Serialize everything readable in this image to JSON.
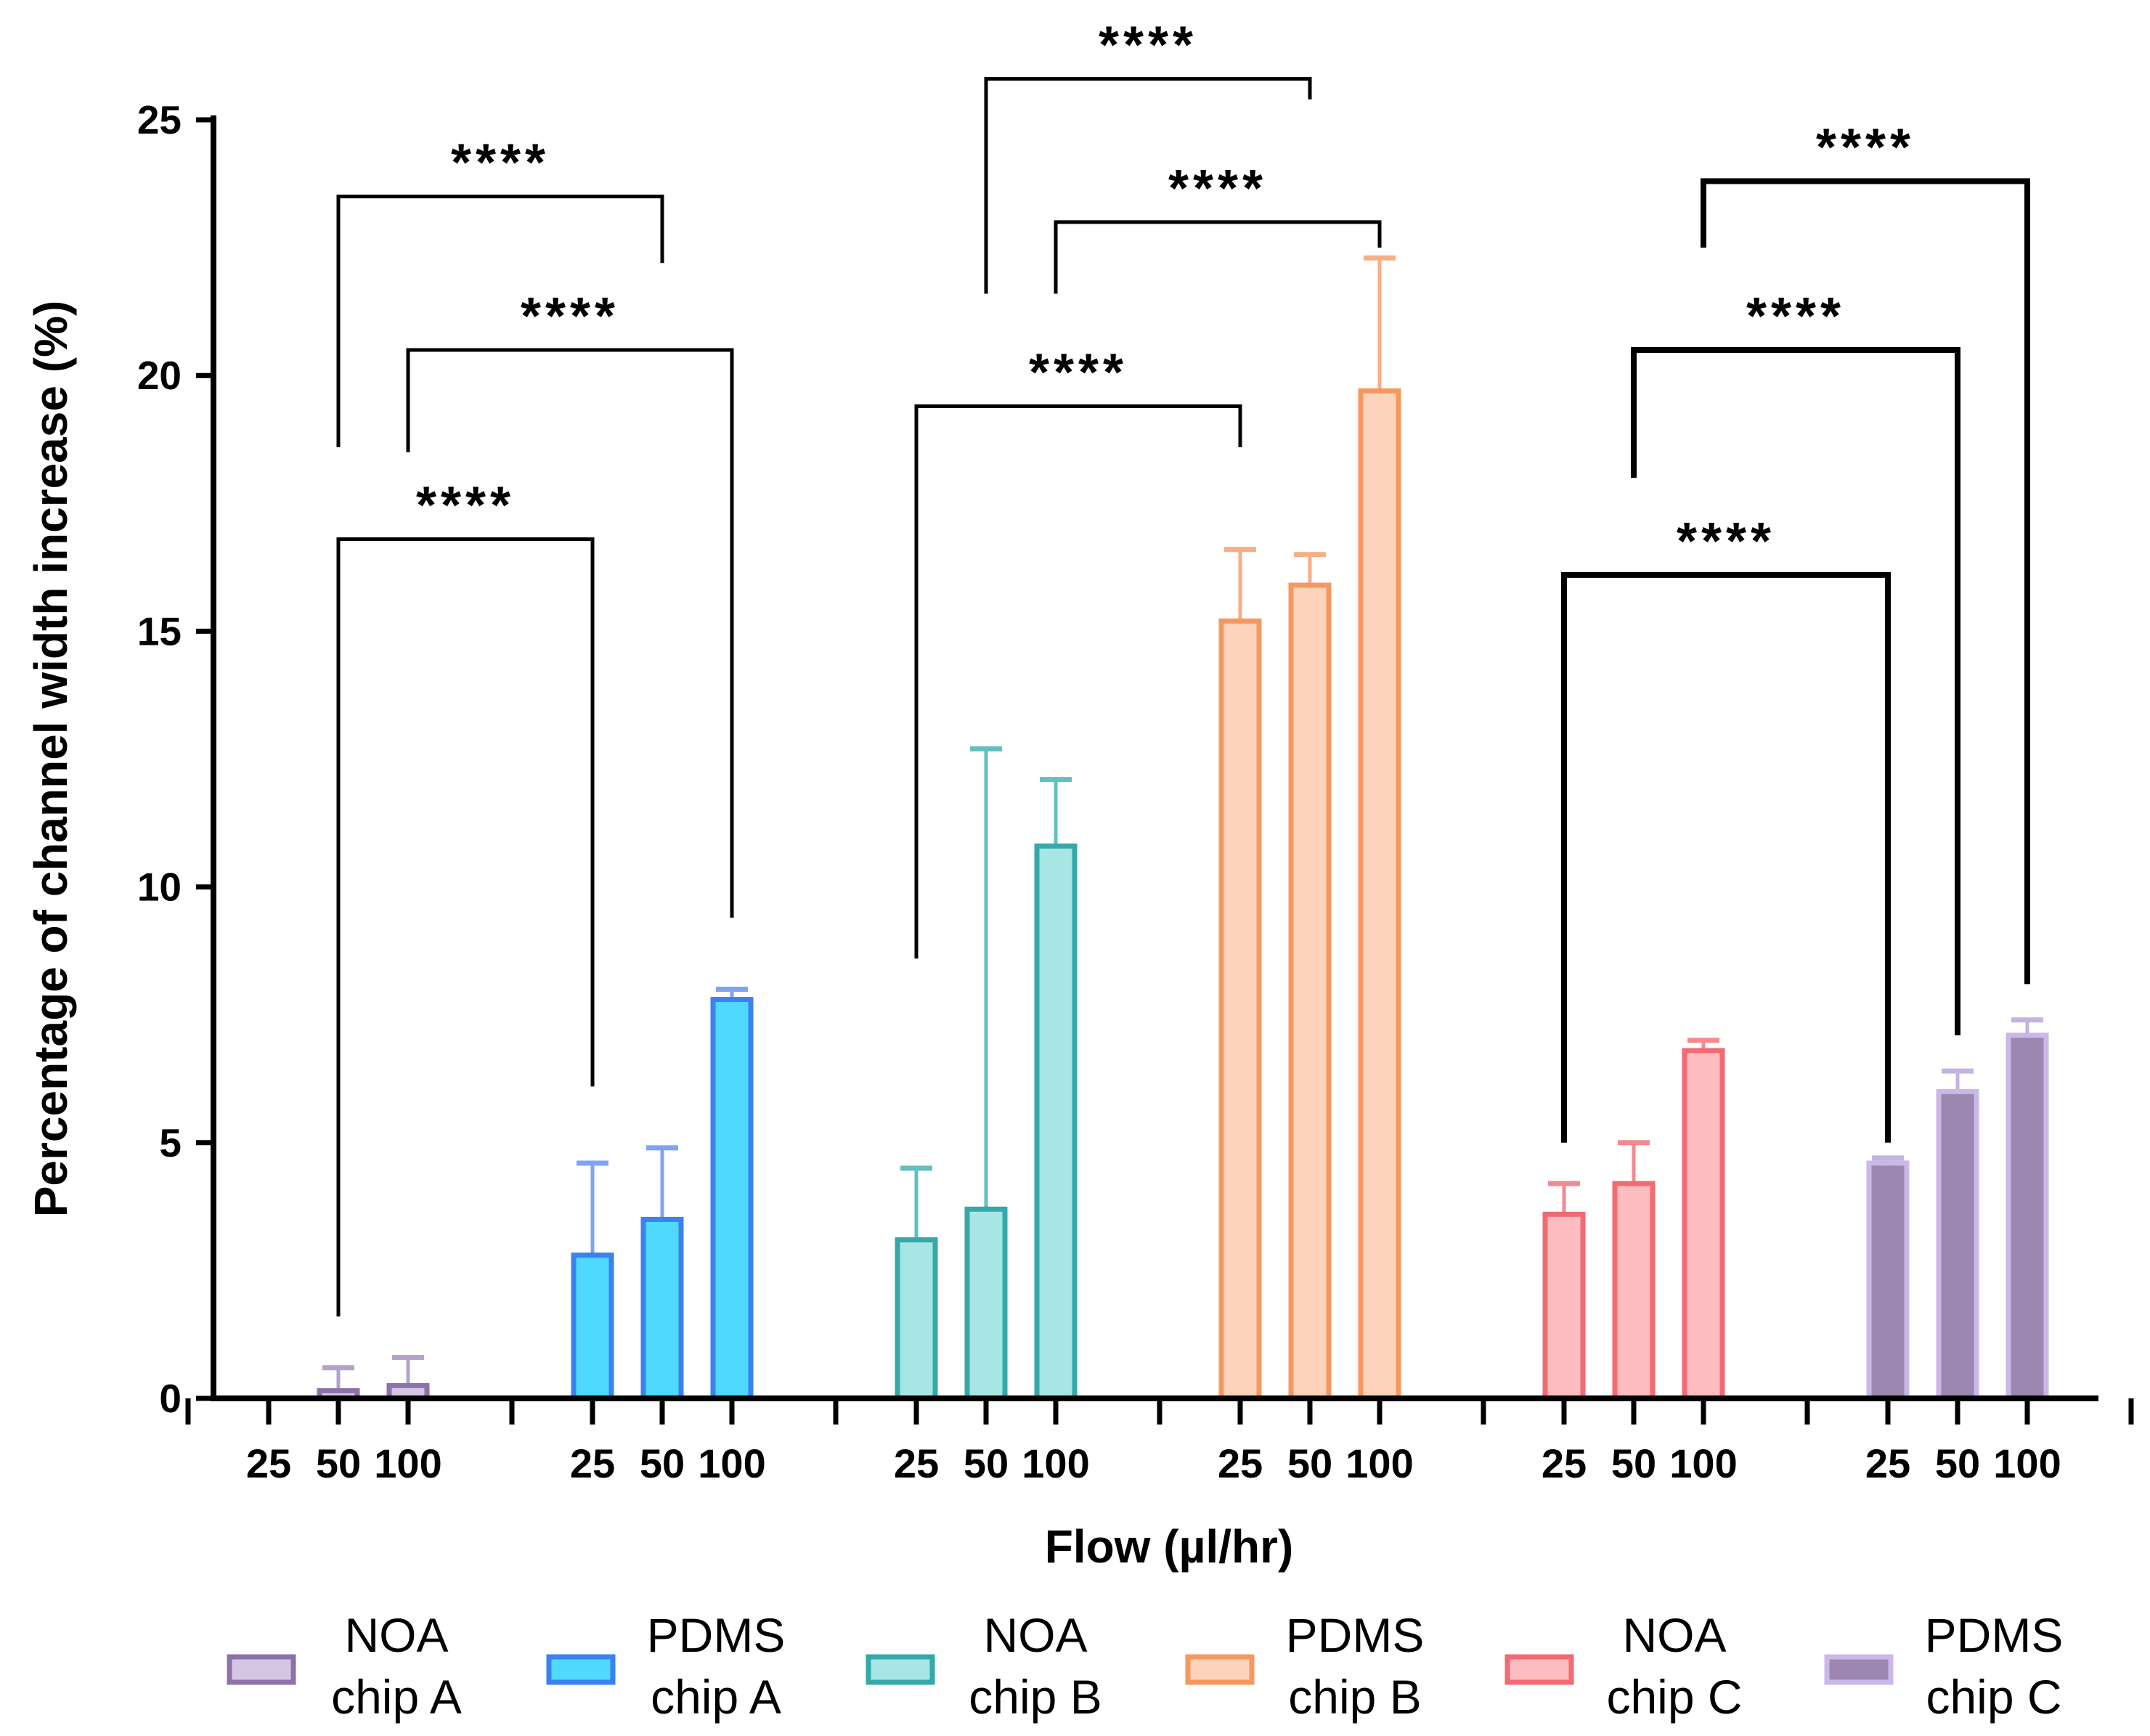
{
  "chart_data": {
    "type": "bar",
    "xlabel": "Flow (µl/hr)",
    "ylabel": "Percentage of channel width increase (%)",
    "ylim": [
      0,
      25
    ],
    "yticks": [
      0,
      5,
      10,
      15,
      20,
      25
    ],
    "categories": [
      "25",
      "50",
      "100"
    ],
    "legend_position": "bottom",
    "groups": [
      {
        "name": "NOA chip A",
        "line1": "NOA",
        "line2": "chip A",
        "fill": "#d6c6e6",
        "stroke": "#8c72a8",
        "err": "#b5a1cc",
        "values": [
          0.0,
          0.15,
          0.25
        ],
        "errors": [
          0.0,
          0.45,
          0.55
        ]
      },
      {
        "name": "PDMS chip A",
        "line1": "PDMS",
        "line2": "chip A",
        "fill": "#4fd9ff",
        "stroke": "#3b82f0",
        "err": "#7fa3f5",
        "values": [
          2.8,
          3.5,
          7.8
        ],
        "errors": [
          1.8,
          1.4,
          0.2
        ]
      },
      {
        "name": "NOA chip B",
        "line1": "NOA",
        "line2": "chip B",
        "fill": "#a8e5e5",
        "stroke": "#36a8a8",
        "err": "#62c0c0",
        "values": [
          3.1,
          3.7,
          10.8
        ],
        "errors": [
          1.4,
          9.0,
          1.3
        ]
      },
      {
        "name": "PDMS chip B",
        "line1": "PDMS",
        "line2": "chip B",
        "fill": "#fdd3bc",
        "stroke": "#f5985f",
        "err": "#f7ae85",
        "values": [
          15.2,
          15.9,
          19.7
        ],
        "errors": [
          1.4,
          0.6,
          2.6
        ]
      },
      {
        "name": "NOA chip C",
        "line1": "NOA",
        "line2": "chip C",
        "fill": "#fdbcc0",
        "stroke": "#f16b73",
        "err": "#f28a90",
        "values": [
          3.6,
          4.2,
          6.8
        ],
        "errors": [
          0.6,
          0.8,
          0.2
        ]
      },
      {
        "name": "PDMS chip C",
        "line1": "PDMS",
        "line2": "chip C",
        "fill": "#9b87b0",
        "stroke": "#cbb8e8",
        "err": "#c4b3df",
        "values": [
          4.6,
          6.0,
          7.1
        ],
        "errors": [
          0.1,
          0.4,
          0.3
        ]
      }
    ],
    "significance": [
      {
        "label": "****",
        "from_group": 0,
        "from_bar": 1,
        "to_group": 1,
        "to_bar": 0,
        "line_y": 16.8,
        "left_drop_to": 1.6,
        "right_drop_to": 6.1,
        "weight": "thin"
      },
      {
        "label": "****",
        "from_group": 0,
        "from_bar": 2,
        "to_group": 1,
        "to_bar": 2,
        "line_y": 20.5,
        "left_drop_to": 18.5,
        "right_drop_to": 9.4,
        "weight": "thin"
      },
      {
        "label": "****",
        "from_group": 0,
        "from_bar": 1,
        "to_group": 1,
        "to_bar": 1,
        "line_y": 23.5,
        "left_drop_to": 18.6,
        "right_drop_to": 22.2,
        "weight": "thin"
      },
      {
        "label": "****",
        "from_group": 2,
        "from_bar": 0,
        "to_group": 3,
        "to_bar": 0,
        "line_y": 19.4,
        "left_drop_to": 8.6,
        "right_drop_to": 18.6,
        "weight": "thin"
      },
      {
        "label": "****",
        "from_group": 2,
        "from_bar": 2,
        "to_group": 3,
        "to_bar": 2,
        "line_y": 23.0,
        "left_drop_to": 21.6,
        "right_drop_to": 22.5,
        "weight": "thin"
      },
      {
        "label": "****",
        "from_group": 2,
        "from_bar": 1,
        "to_group": 3,
        "to_bar": 1,
        "line_y": 25.8,
        "left_drop_to": 21.6,
        "right_drop_to": 25.4,
        "weight": "thin"
      },
      {
        "label": "****",
        "from_group": 4,
        "from_bar": 0,
        "to_group": 5,
        "to_bar": 0,
        "line_y": 16.1,
        "left_drop_to": 5.0,
        "right_drop_to": 5.0,
        "weight": "bold"
      },
      {
        "label": "****",
        "from_group": 4,
        "from_bar": 1,
        "to_group": 5,
        "to_bar": 1,
        "line_y": 20.5,
        "left_drop_to": 18.0,
        "right_drop_to": 7.1,
        "weight": "bold"
      },
      {
        "label": "****",
        "from_group": 4,
        "from_bar": 2,
        "to_group": 5,
        "to_bar": 2,
        "line_y": 23.8,
        "left_drop_to": 22.5,
        "right_drop_to": 8.1,
        "weight": "bold"
      }
    ]
  }
}
